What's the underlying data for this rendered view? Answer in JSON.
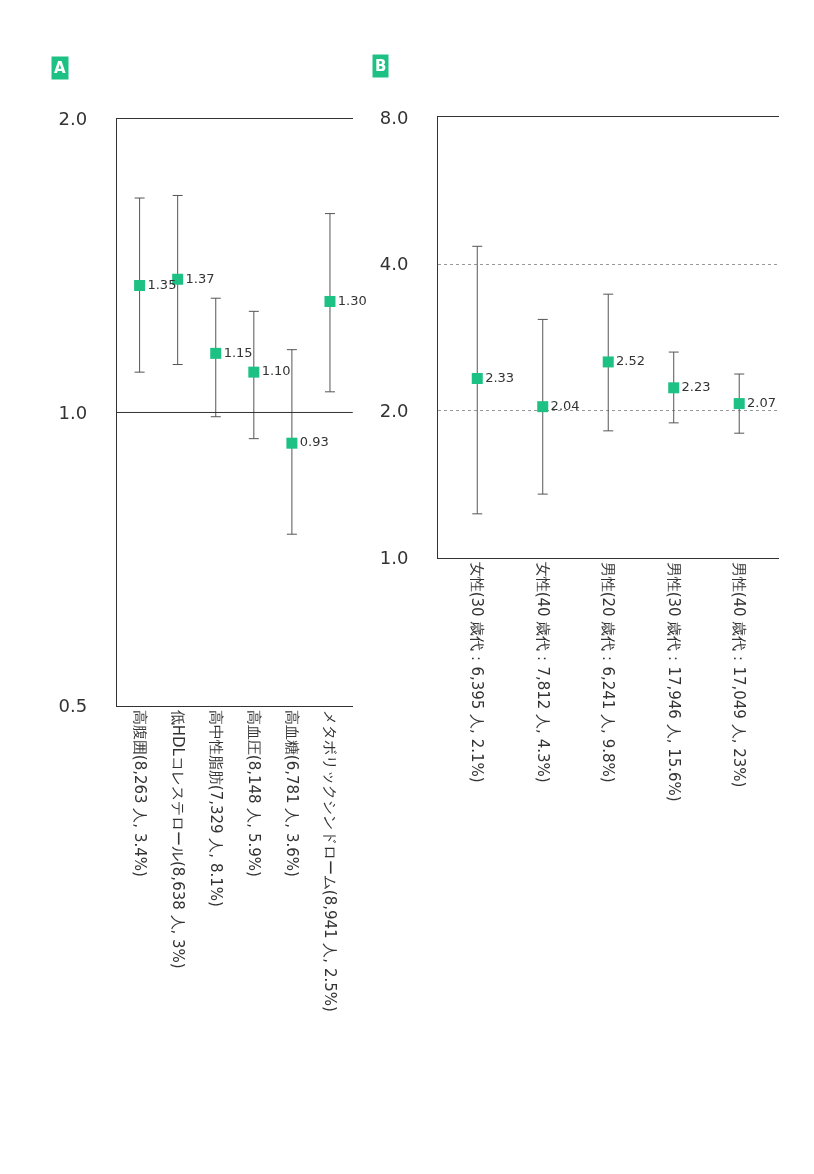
{
  "chart_data": [
    {
      "type": "scatter",
      "title": "A",
      "categories": [
        "高腹囲(8,263 人, 3.4%)",
        "低HDLコレステロール(8,638 人, 3%)",
        "高中性脂肪(7,329 人, 8.1%)",
        "高血圧(8,148 人, 5.9%)",
        "高血糖(6,781 人, 3.6%)",
        "メタボリックシンドローム(8,941 人, 2.5%)"
      ],
      "series": [
        {
          "color": "#1dc184",
          "values": [
            1.35,
            1.37,
            1.15,
            1.1,
            0.93,
            1.3
          ],
          "value_labels": [
            "1.35",
            "1.37",
            "1.15",
            "1.10",
            "0.93",
            "1.30"
          ],
          "errors": [
            [
              1.1,
              1.66
            ],
            [
              1.12,
              1.67
            ],
            [
              0.99,
              1.31
            ],
            [
              0.94,
              1.27
            ],
            [
              0.75,
              1.16
            ],
            [
              1.05,
              1.6
            ]
          ]
        }
      ],
      "log": "y",
      "ylim": [
        0.5,
        2.0
      ],
      "yticks": [
        {
          "value": 0.5,
          "label": "0.5"
        },
        {
          "value": 1,
          "label": "1.0"
        },
        {
          "value": 2,
          "label": "2.0"
        }
      ],
      "ref_lines": [
        {
          "axis": "y",
          "value": 1,
          "color": "#333333",
          "line_style": "solid"
        }
      ],
      "grid": false,
      "marker": "square"
    },
    {
      "type": "scatter",
      "title": "B",
      "categories": [
        "女性(30 歳代：6,395 人, 2.1%)",
        "女性(40 歳代：7,812 人, 4.3%)",
        "男性(20 歳代：6,241 人, 9.8%)",
        "男性(30 歳代：17,946 人, 15.6%)",
        "男性(40 歳代：17,049 人, 23%)"
      ],
      "series": [
        {
          "color": "#1dc184",
          "values": [
            2.33,
            2.04,
            2.52,
            2.23,
            2.07
          ],
          "value_labels": [
            "2.33",
            "2.04",
            "2.52",
            "2.23",
            "2.07"
          ],
          "errors": [
            [
              1.23,
              4.35
            ],
            [
              1.35,
              3.08
            ],
            [
              1.82,
              3.47
            ],
            [
              1.89,
              2.64
            ],
            [
              1.8,
              2.38
            ]
          ]
        }
      ],
      "log": "y",
      "ylim": [
        1,
        8
      ],
      "yticks": [
        {
          "value": 1,
          "label": "1.0"
        },
        {
          "value": 2,
          "label": "2.0"
        },
        {
          "value": 4,
          "label": "4.0"
        },
        {
          "value": 8,
          "label": "8.0"
        }
      ],
      "grid": "y",
      "marker": "square"
    }
  ]
}
